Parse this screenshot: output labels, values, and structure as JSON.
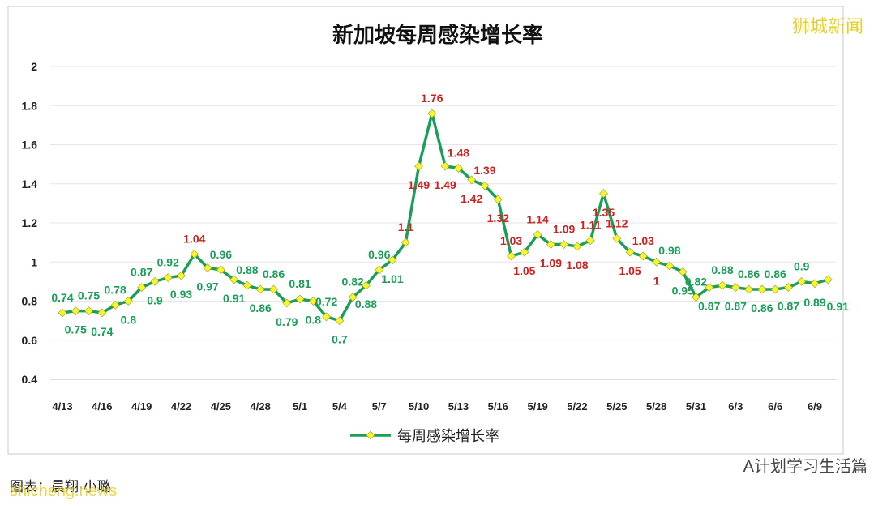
{
  "chart_data": {
    "type": "line",
    "title": "新加坡每周感染增长率",
    "categories": [
      "4/13",
      null,
      null,
      "4/16",
      null,
      null,
      "4/19",
      null,
      null,
      "4/22",
      null,
      null,
      "4/25",
      null,
      null,
      "4/28",
      null,
      null,
      "5/1",
      null,
      null,
      "5/4",
      null,
      null,
      "5/7",
      null,
      null,
      "5/10",
      null,
      null,
      "5/13",
      null,
      null,
      "5/16",
      null,
      null,
      "5/19",
      null,
      null,
      "5/22",
      null,
      null,
      "5/25",
      null,
      null,
      "5/28",
      null,
      null,
      "5/31",
      null,
      null,
      "6/3",
      null,
      null,
      "6/6",
      null,
      null,
      "6/9",
      null
    ],
    "series": [
      {
        "name": "每周感染增长率",
        "color": "#1a9e58",
        "marker_color": "#f5f530",
        "values": [
          0.74,
          0.75,
          0.75,
          0.74,
          0.78,
          0.8,
          0.87,
          0.9,
          0.92,
          0.93,
          1.04,
          0.97,
          0.96,
          0.91,
          0.88,
          0.86,
          0.86,
          0.79,
          0.81,
          0.8,
          0.72,
          0.7,
          0.82,
          0.88,
          0.96,
          1.01,
          1.1,
          1.49,
          1.76,
          1.49,
          1.48,
          1.42,
          1.39,
          1.32,
          1.03,
          1.05,
          1.14,
          1.09,
          1.09,
          1.08,
          1.11,
          1.35,
          1.12,
          1.05,
          1.03,
          1,
          0.98,
          0.95,
          0.82,
          0.87,
          0.88,
          0.87,
          0.86,
          0.86,
          0.86,
          0.87,
          0.9,
          0.89,
          0.91
        ]
      }
    ],
    "ylim": [
      0.4,
      2
    ],
    "yticks": [
      0.4,
      0.6,
      0.8,
      1,
      1.2,
      1.4,
      1.6,
      1.8,
      2
    ],
    "grid": true,
    "legend": "bottom",
    "annotations": [
      "狮城新闻",
      "图表：晨翔·小璐",
      "shicheng.news",
      "A计划学习生活篇"
    ]
  }
}
